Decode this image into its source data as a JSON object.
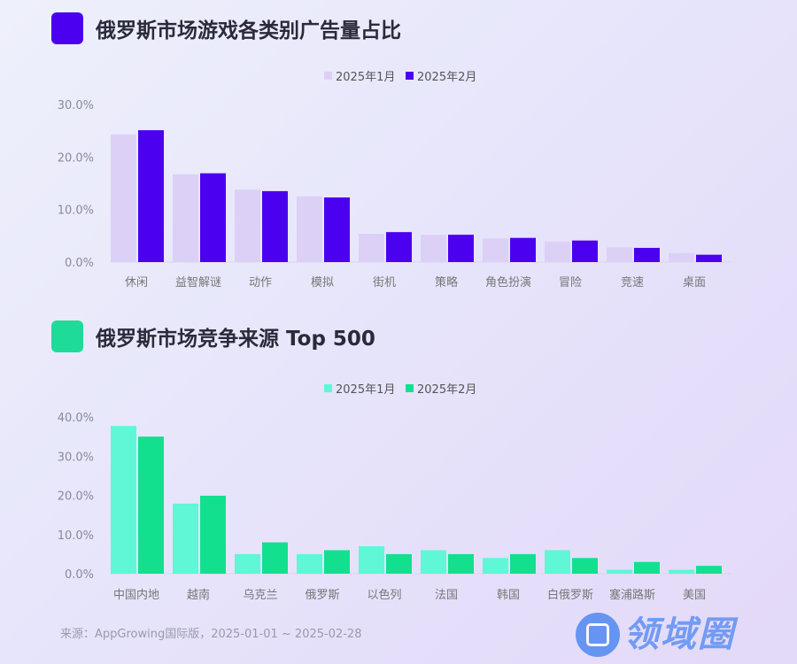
{
  "chart_data": [
    {
      "type": "bar",
      "title": "俄罗斯市场游戏各类别广告量占比",
      "title_color": "#4b00f0",
      "categories": [
        "休闲",
        "益智解谜",
        "动作",
        "模拟",
        "街机",
        "策略",
        "角色扮演",
        "冒险",
        "竞速",
        "桌面"
      ],
      "series": [
        {
          "name": "2025年1月",
          "color": "#dcd0f7",
          "values": [
            24.3,
            16.7,
            13.8,
            12.5,
            5.4,
            5.2,
            4.5,
            3.9,
            2.8,
            1.7
          ]
        },
        {
          "name": "2025年2月",
          "color": "#4b00f0",
          "values": [
            25.1,
            16.9,
            13.5,
            12.3,
            5.7,
            5.2,
            4.6,
            4.1,
            2.7,
            1.4
          ]
        }
      ],
      "yticks": [
        "0.0%",
        "10.0%",
        "20.0%",
        "30.0%"
      ],
      "ylim": [
        0,
        30
      ],
      "legend": "top-center",
      "grid": false
    },
    {
      "type": "bar",
      "title": "俄罗斯市场竞争来源 Top 500",
      "title_color": "#1fdb9a",
      "categories": [
        "中国内地",
        "越南",
        "乌克兰",
        "俄罗斯",
        "以色列",
        "法国",
        "韩国",
        "白俄罗斯",
        "塞浦路斯",
        "美国"
      ],
      "series": [
        {
          "name": "2025年1月",
          "color": "#5ff7d6",
          "values": [
            37.7,
            17.9,
            5,
            5,
            7,
            6,
            4,
            6,
            1,
            1
          ]
        },
        {
          "name": "2025年2月",
          "color": "#12e08f",
          "values": [
            35,
            19.9,
            8,
            6,
            5,
            5,
            5,
            4,
            3,
            2
          ]
        }
      ],
      "yticks": [
        "0.0%",
        "10.0%",
        "20.0%",
        "30.0%",
        "40.0%"
      ],
      "ylim": [
        0,
        40
      ],
      "legend": "top-center",
      "grid": false
    }
  ],
  "source": "来源：AppGrowing国际版，2025-01-01 ~ 2025-02-28",
  "watermark": "领域圈"
}
